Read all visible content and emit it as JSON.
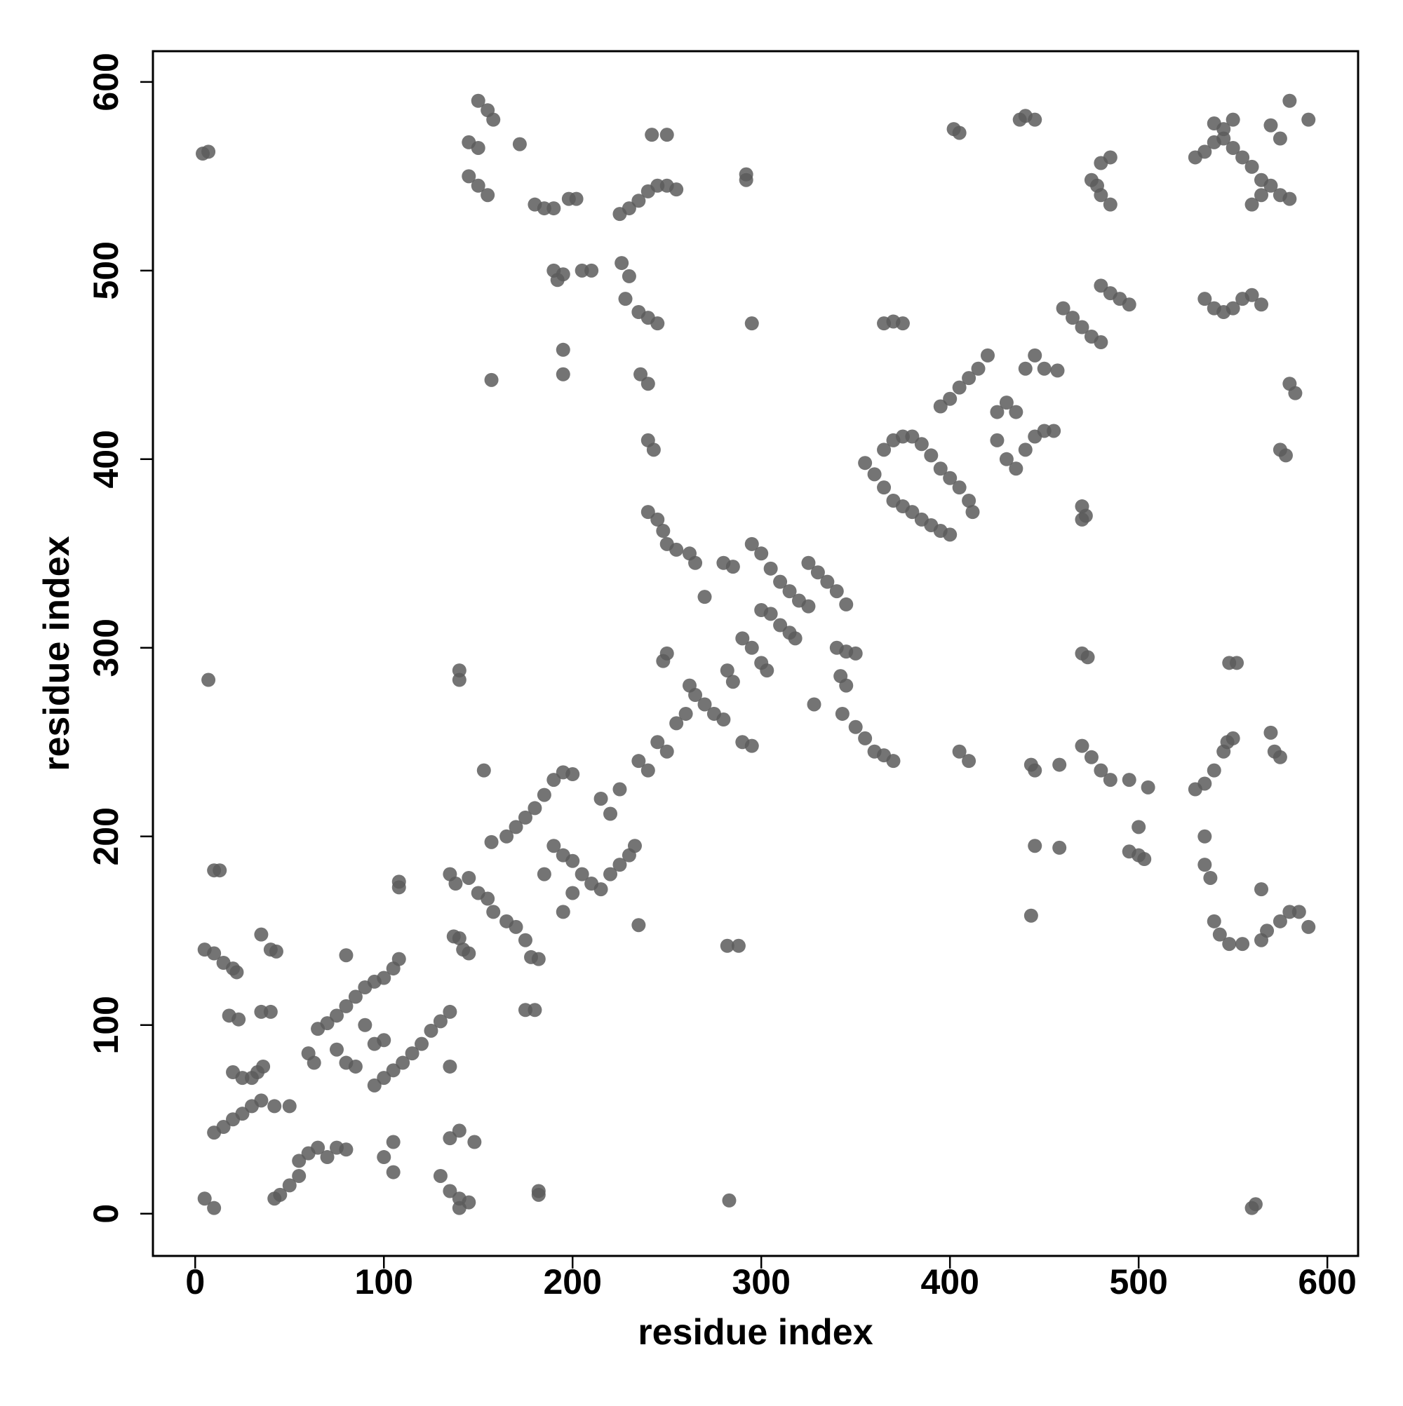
{
  "chart_data": {
    "type": "scatter",
    "xlabel": "residue index",
    "ylabel": "residue index",
    "color": "#5c5c5c",
    "xlim": [
      -22.4,
      616.3
    ],
    "ylim": [
      -22.4,
      616.3
    ],
    "xticks": [
      0,
      100,
      200,
      300,
      400,
      500,
      600
    ],
    "yticks": [
      0,
      100,
      200,
      300,
      400,
      500,
      600
    ],
    "x": [
      10,
      15,
      20,
      25,
      30,
      35,
      30,
      33,
      36,
      65,
      70,
      75,
      80,
      85,
      90,
      95,
      95,
      100,
      105,
      110,
      115,
      120,
      125,
      130,
      135,
      100,
      105,
      108,
      55,
      60,
      65,
      70,
      75,
      80,
      45,
      50,
      55,
      42,
      135,
      140,
      148,
      130,
      135,
      140,
      145,
      140,
      5,
      10,
      15,
      20,
      22,
      35,
      40,
      43,
      10,
      13,
      7,
      4,
      7,
      5,
      10,
      18,
      23,
      35,
      40,
      20,
      25,
      42,
      50,
      60,
      63,
      75,
      80,
      85,
      90,
      95,
      100,
      105,
      108,
      108,
      105,
      80,
      100,
      135,
      138,
      137,
      140,
      142,
      145,
      145,
      150,
      155,
      158,
      165,
      170,
      175,
      178,
      182,
      165,
      170,
      175,
      180,
      185,
      190,
      195,
      200,
      190,
      195,
      200,
      205,
      210,
      215,
      220,
      225,
      230,
      233,
      200,
      195,
      185,
      215,
      225,
      220,
      175,
      180,
      182,
      182,
      140,
      140,
      153,
      157,
      135,
      235,
      240,
      245,
      250,
      255,
      260,
      262,
      265,
      270,
      275,
      280,
      250,
      248,
      282,
      288,
      282,
      285,
      235,
      150,
      155,
      158,
      145,
      150,
      145,
      150,
      155,
      172,
      180,
      185,
      190,
      198,
      202,
      190,
      192,
      195,
      205,
      210,
      195,
      195,
      157,
      225,
      230,
      235,
      240,
      245,
      250,
      255,
      242,
      250,
      226,
      230,
      228,
      235,
      240,
      245,
      236,
      240,
      240,
      243,
      240,
      245,
      248,
      250,
      255,
      262,
      265,
      270,
      280,
      285,
      292,
      292,
      295,
      295,
      300,
      305,
      310,
      315,
      320,
      325,
      325,
      330,
      335,
      340,
      345,
      300,
      305,
      310,
      315,
      318,
      290,
      295,
      300,
      303,
      340,
      345,
      350,
      342,
      345,
      343,
      350,
      355,
      360,
      365,
      370,
      328,
      290,
      295,
      405,
      410,
      365,
      370,
      375,
      355,
      360,
      365,
      370,
      375,
      380,
      385,
      390,
      395,
      400,
      365,
      370,
      375,
      380,
      385,
      390,
      395,
      400,
      405,
      410,
      412,
      395,
      400,
      405,
      410,
      415,
      420,
      425,
      430,
      435,
      440,
      445,
      450,
      455,
      425,
      430,
      435,
      440,
      445,
      450,
      457,
      402,
      405,
      437,
      440,
      445,
      460,
      465,
      470,
      475,
      480,
      480,
      485,
      490,
      495,
      475,
      478,
      480,
      485,
      480,
      485,
      470,
      472,
      470,
      470,
      473,
      443,
      445,
      458,
      470,
      475,
      480,
      485,
      495,
      495,
      500,
      500,
      503,
      505,
      445,
      458,
      443,
      530,
      535,
      540,
      545,
      550,
      555,
      560,
      565,
      560,
      565,
      570,
      575,
      580,
      540,
      545,
      550,
      570,
      575,
      580,
      590,
      535,
      540,
      545,
      550,
      555,
      560,
      565,
      580,
      583,
      575,
      578,
      530,
      535,
      540,
      545,
      547,
      550,
      535,
      535,
      538,
      540,
      543,
      548,
      555,
      565,
      568,
      575,
      580,
      585,
      590,
      548,
      552,
      570,
      572,
      575,
      565,
      562,
      560,
      283
    ],
    "values": [
      43,
      46,
      50,
      53,
      57,
      60,
      72,
      75,
      78,
      98,
      101,
      105,
      110,
      115,
      120,
      123,
      68,
      72,
      76,
      80,
      85,
      90,
      97,
      102,
      107,
      125,
      130,
      135,
      28,
      32,
      35,
      30,
      35,
      34,
      10,
      15,
      20,
      8,
      40,
      44,
      38,
      20,
      12,
      8,
      6,
      3,
      140,
      138,
      133,
      130,
      128,
      148,
      140,
      139,
      182,
      182,
      283,
      562,
      563,
      8,
      3,
      105,
      103,
      107,
      107,
      75,
      72,
      57,
      57,
      85,
      80,
      87,
      80,
      78,
      100,
      90,
      92,
      38,
      176,
      173,
      22,
      137,
      30,
      180,
      175,
      147,
      146,
      140,
      138,
      178,
      170,
      167,
      160,
      155,
      152,
      145,
      136,
      135,
      200,
      205,
      210,
      215,
      222,
      230,
      234,
      233,
      195,
      190,
      187,
      180,
      175,
      172,
      180,
      185,
      190,
      195,
      170,
      160,
      180,
      220,
      225,
      212,
      108,
      108,
      10,
      12,
      283,
      288,
      235,
      197,
      78,
      240,
      235,
      250,
      245,
      260,
      265,
      280,
      275,
      270,
      265,
      262,
      297,
      293,
      142,
      142,
      288,
      282,
      153,
      590,
      585,
      580,
      568,
      565,
      550,
      545,
      540,
      567,
      535,
      533,
      533,
      538,
      538,
      500,
      495,
      498,
      500,
      500,
      458,
      445,
      442,
      530,
      533,
      537,
      542,
      545,
      545,
      543,
      572,
      572,
      504,
      497,
      485,
      478,
      475,
      472,
      445,
      440,
      410,
      405,
      372,
      368,
      362,
      355,
      352,
      350,
      345,
      327,
      345,
      343,
      548,
      551,
      472,
      355,
      350,
      342,
      335,
      330,
      325,
      322,
      345,
      340,
      335,
      330,
      323,
      320,
      318,
      312,
      308,
      305,
      305,
      300,
      292,
      288,
      300,
      298,
      297,
      285,
      280,
      265,
      258,
      252,
      245,
      243,
      240,
      270,
      250,
      248,
      245,
      240,
      472,
      473,
      472,
      398,
      392,
      385,
      378,
      375,
      372,
      368,
      365,
      362,
      360,
      405,
      410,
      412,
      412,
      408,
      402,
      395,
      390,
      385,
      378,
      372,
      428,
      432,
      438,
      443,
      448,
      455,
      410,
      400,
      395,
      405,
      412,
      415,
      415,
      425,
      430,
      425,
      448,
      455,
      448,
      447,
      575,
      573,
      580,
      582,
      580,
      480,
      475,
      470,
      465,
      462,
      492,
      488,
      485,
      482,
      548,
      545,
      540,
      535,
      557,
      560,
      375,
      370,
      368,
      297,
      295,
      238,
      235,
      238,
      248,
      242,
      235,
      230,
      230,
      192,
      190,
      205,
      188,
      226,
      195,
      194,
      158,
      560,
      563,
      568,
      570,
      565,
      560,
      555,
      548,
      535,
      540,
      545,
      540,
      538,
      578,
      575,
      580,
      577,
      570,
      590,
      580,
      485,
      480,
      478,
      480,
      485,
      487,
      482,
      440,
      435,
      405,
      402,
      225,
      228,
      235,
      245,
      250,
      252,
      200,
      185,
      178,
      155,
      148,
      143,
      143,
      145,
      150,
      155,
      160,
      160,
      152,
      292,
      292,
      255,
      245,
      242,
      172,
      5,
      3,
      7
    ]
  }
}
